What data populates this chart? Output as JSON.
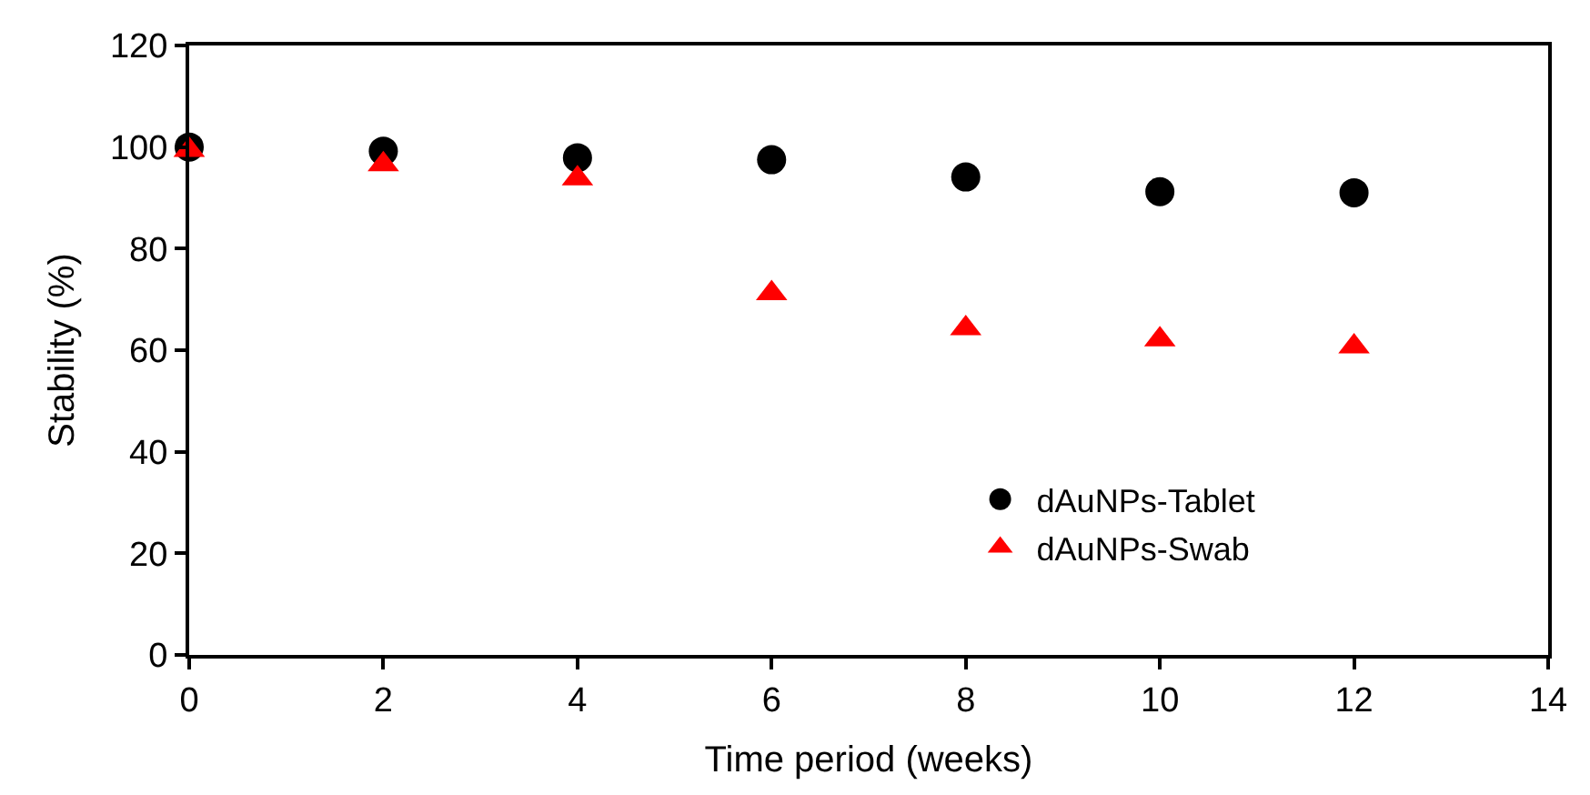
{
  "chart_data": {
    "type": "scatter",
    "xlabel": "Time period (weeks)",
    "ylabel": "Stability (%)",
    "x": [
      0,
      2,
      4,
      6,
      8,
      10,
      12
    ],
    "series": [
      {
        "name": "dAuNPs-Tablet",
        "color": "#000000",
        "marker": "circle",
        "values": [
          100,
          99.2,
          97.9,
          97.5,
          94.1,
          91.2,
          91.0
        ]
      },
      {
        "name": "dAuNPs-Swab",
        "color": "#ff0000",
        "marker": "triangle",
        "values": [
          99.4,
          96.6,
          93.8,
          71.2,
          64.3,
          62.1,
          60.7
        ]
      }
    ],
    "xlim": [
      0,
      14
    ],
    "xticks": [
      0,
      2,
      4,
      6,
      8,
      10,
      12,
      14
    ],
    "ylim": [
      0,
      120
    ],
    "yticks": [
      0,
      20,
      40,
      60,
      80,
      100,
      120
    ],
    "legend": "bottom right"
  }
}
